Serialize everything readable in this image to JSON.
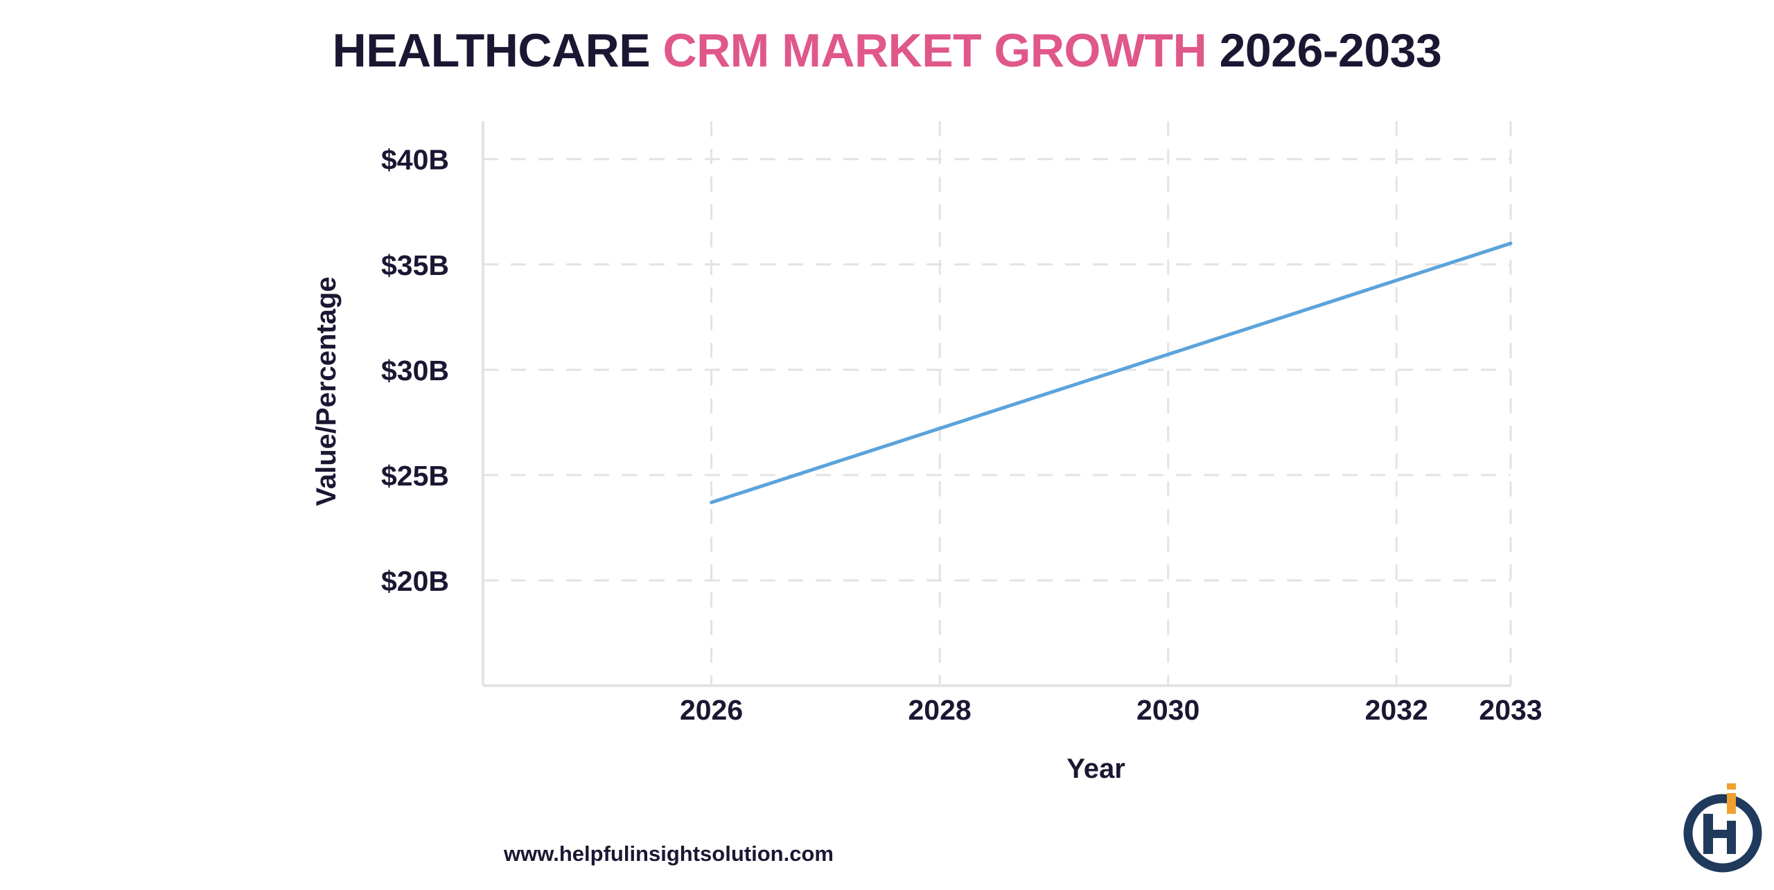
{
  "title": {
    "part1": "HEALTHCARE",
    "part2": "CRM MARKET GROWTH",
    "part3": "2026-2033"
  },
  "footer": {
    "url": "www.helpfulinsightsolution.com"
  },
  "logo": {
    "icon": "helpful-insight-logo-icon",
    "color_primary": "#1f3a5c",
    "color_accent": "#f0a030"
  },
  "chart_data": {
    "type": "line",
    "title": "HEALTHCARE CRM MARKET GROWTH 2026-2033",
    "xlabel": "Year",
    "ylabel": "Value/Percentage",
    "x": [
      2026,
      2033
    ],
    "series": [
      {
        "values": [
          23.7,
          36.0
        ],
        "color": "#5ba3db"
      }
    ],
    "xticks": [
      2026,
      2028,
      2030,
      2032,
      2033
    ],
    "xtick_labels": [
      "2026",
      "2028",
      "2030",
      "2032",
      "2033"
    ],
    "yticks": [
      20,
      25,
      30,
      35,
      40
    ],
    "ytick_labels": [
      "$20B",
      "$25B",
      "$30B",
      "$35B",
      "$40B"
    ],
    "xlim": [
      2024,
      2033
    ],
    "ylim": [
      15,
      41.8
    ],
    "grid": true,
    "legend": "none"
  }
}
